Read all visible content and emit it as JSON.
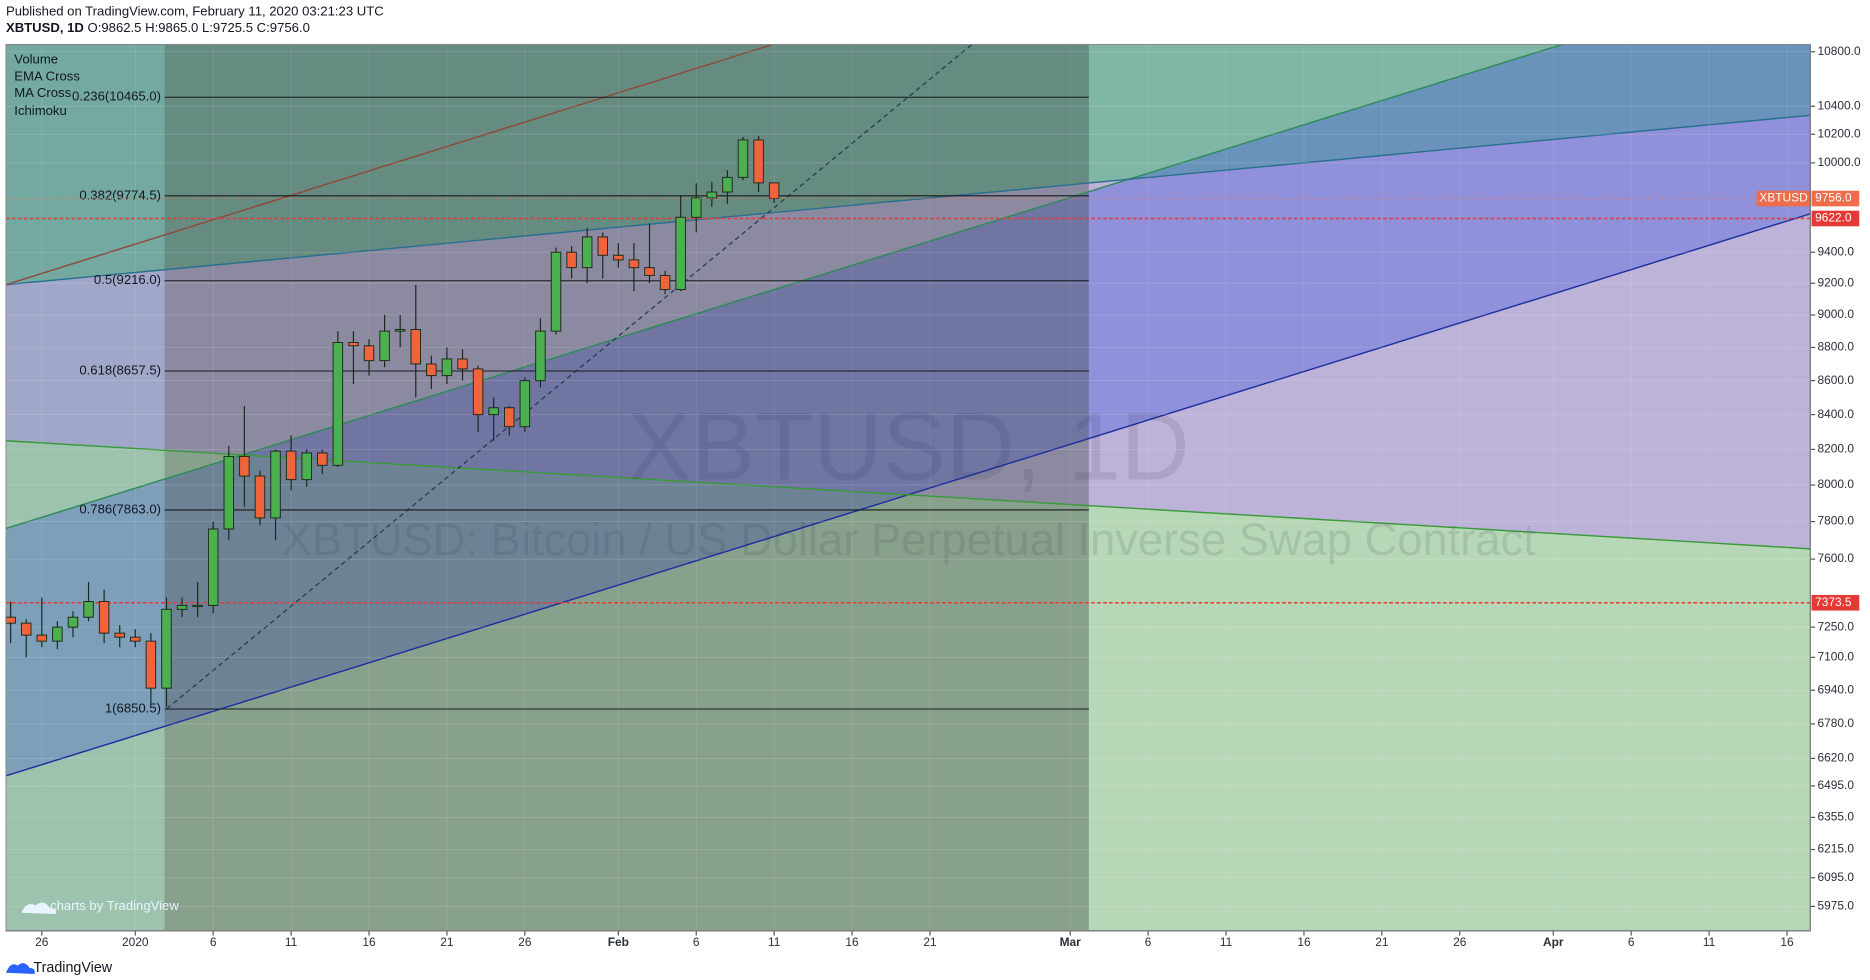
{
  "header": {
    "published": "Published on TradingView.com, February 11, 2020 03:21:23 UTC",
    "symbol": "XBTUSD, 1D",
    "ohlc": [
      "O:9862.5",
      "H:9865.0",
      "L:9725.5",
      "C:9756.0"
    ]
  },
  "indicators": [
    "Volume",
    "EMA Cross",
    "MA Cross",
    "Ichimoku"
  ],
  "watermark": {
    "symbol": "XBTUSD, 1D",
    "description": "XBTUSD: Bitcoin / US Dollar Perpetual Inverse Swap Contract"
  },
  "footer": {
    "brand": "TradingView",
    "credit": "charts by TradingView"
  },
  "chart_data": {
    "type": "candlestick",
    "x": [
      -7,
      -6,
      -5,
      -4,
      -3,
      -2,
      -1,
      0,
      1,
      2,
      3,
      4,
      5,
      6,
      7,
      8,
      9,
      10,
      11,
      12,
      13,
      14,
      15,
      16,
      17,
      18,
      19,
      20,
      21,
      22,
      23,
      24,
      25,
      26,
      27,
      28,
      29,
      30,
      31,
      32,
      33,
      34,
      35,
      36,
      37,
      38,
      39,
      40,
      41,
      42
    ],
    "open": [
      7300,
      7270,
      7210,
      7180,
      7250,
      7300,
      7380,
      7220,
      7200,
      7180,
      6950,
      7340,
      7360,
      7360,
      7760,
      8160,
      8050,
      7820,
      8190,
      8030,
      8180,
      8110,
      8830,
      8810,
      8720,
      8900,
      8910,
      8700,
      8630,
      8730,
      8670,
      8400,
      8440,
      8330,
      8600,
      8900,
      9400,
      9300,
      9500,
      9380,
      9350,
      9300,
      9250,
      9160,
      9630,
      9760,
      9800,
      9900,
      10160,
      9862.5
    ],
    "high": [
      7380,
      7290,
      7400,
      7280,
      7330,
      7480,
      7440,
      7260,
      7240,
      7220,
      7400,
      7400,
      7480,
      7800,
      8220,
      8450,
      8080,
      8200,
      8280,
      8200,
      8200,
      8900,
      8900,
      8850,
      9000,
      9000,
      9190,
      8750,
      8800,
      8790,
      8690,
      8500,
      8450,
      8620,
      8980,
      9430,
      9440,
      9560,
      9530,
      9460,
      9460,
      9590,
      9280,
      9780,
      9860,
      9870,
      9950,
      10180,
      10190,
      9865
    ],
    "low": [
      7170,
      7100,
      7150,
      7140,
      7200,
      7280,
      7170,
      7150,
      7150,
      6870,
      6860,
      7300,
      7300,
      7320,
      7700,
      7880,
      7780,
      7700,
      7970,
      7990,
      8060,
      8100,
      8580,
      8630,
      8680,
      8800,
      8500,
      8550,
      8580,
      8600,
      8300,
      8250,
      8280,
      8300,
      8560,
      8880,
      9230,
      9200,
      9230,
      9300,
      9150,
      9200,
      9130,
      9150,
      9530,
      9700,
      9720,
      9880,
      9800,
      9725.5
    ],
    "close": [
      7270,
      7210,
      7180,
      7250,
      7300,
      7380,
      7220,
      7200,
      7180,
      6950,
      7340,
      7360,
      7360,
      7760,
      8160,
      8050,
      7820,
      8190,
      8030,
      8180,
      8110,
      8830,
      8810,
      8720,
      8900,
      8910,
      8700,
      8630,
      8730,
      8670,
      8400,
      8440,
      8330,
      8600,
      8900,
      9400,
      9300,
      9500,
      9380,
      9350,
      9300,
      9250,
      9160,
      9630,
      9760,
      9800,
      9900,
      10160,
      9862.5,
      9756
    ],
    "up_color": "#4caf50",
    "down_color": "#f0643c",
    "xlim": [
      -7.3,
      108.5
    ],
    "xticks": [
      {
        "value": -5,
        "label": "26"
      },
      {
        "value": 1,
        "label": "2020"
      },
      6,
      11,
      16,
      21,
      26,
      {
        "value": 32,
        "label": "Feb"
      },
      {
        "value": 37,
        "label": "6"
      },
      {
        "value": 42,
        "label": "11"
      },
      {
        "value": 47,
        "label": "16"
      },
      {
        "value": 52,
        "label": "21"
      },
      {
        "value": 61,
        "label": "Mar"
      },
      {
        "value": 66,
        "label": "6"
      },
      {
        "value": 71,
        "label": "11"
      },
      {
        "value": 76,
        "label": "16"
      },
      {
        "value": 81,
        "label": "21"
      },
      {
        "value": 86,
        "label": "26"
      },
      {
        "value": 92,
        "label": "Apr"
      },
      {
        "value": 97,
        "label": "6"
      },
      {
        "value": 102,
        "label": "11"
      },
      {
        "value": 107,
        "label": "16"
      }
    ],
    "ylim": [
      5875,
      10855
    ],
    "log_scale": true,
    "yticks": [
      {
        "value": 10800,
        "label": "10800.0"
      },
      {
        "value": 10400,
        "label": "10400.0"
      },
      {
        "value": 10200,
        "label": "10200.0"
      },
      {
        "value": 10000,
        "label": "10000.0"
      },
      {
        "value": 9400,
        "label": "9400.0"
      },
      {
        "value": 9200,
        "label": "9200.0"
      },
      {
        "value": 9000,
        "label": "9000.0"
      },
      {
        "value": 8800,
        "label": "8800.0"
      },
      {
        "value": 8600,
        "label": "8600.0"
      },
      {
        "value": 8400,
        "label": "8400.0"
      },
      {
        "value": 8200,
        "label": "8200.0"
      },
      {
        "value": 8000,
        "label": "8000.0"
      },
      {
        "value": 7800,
        "label": "7800.0"
      },
      {
        "value": 7600,
        "label": "7600.0"
      },
      {
        "value": 7250,
        "label": "7250.0"
      },
      {
        "value": 7100,
        "label": "7100.0"
      },
      {
        "value": 6940,
        "label": "6940.0"
      },
      {
        "value": 6780,
        "label": "6780.0"
      },
      {
        "value": 6620,
        "label": "6620.0"
      },
      {
        "value": 6495,
        "label": "6495.0"
      },
      {
        "value": 6355,
        "label": "6355.0"
      },
      {
        "value": 6215,
        "label": "6215.0"
      },
      {
        "value": 6095,
        "label": "6095.0"
      },
      {
        "value": 5975,
        "label": "5975.0"
      }
    ],
    "fib_levels": [
      {
        "value": 10465,
        "label": "0.236(10465.0)"
      },
      {
        "value": 9774.5,
        "label": "0.382(9774.5)"
      },
      {
        "value": 9216,
        "label": "0.5(9216.0)"
      },
      {
        "value": 8657.5,
        "label": "0.618(8657.5)"
      },
      {
        "value": 7863,
        "label": "0.786(7863.0)"
      },
      {
        "value": 6850.5,
        "label": "1(6850.5)"
      }
    ],
    "price_lines": [
      {
        "value": 9622,
        "label": "9622.0",
        "color": "#e53935"
      },
      {
        "value": 7373.5,
        "label": "7373.5",
        "color": "#e53935"
      }
    ],
    "last_price": {
      "name": "XBTUSD",
      "value": 9756,
      "label": "9756.0",
      "color": "#ef6c4a"
    }
  }
}
